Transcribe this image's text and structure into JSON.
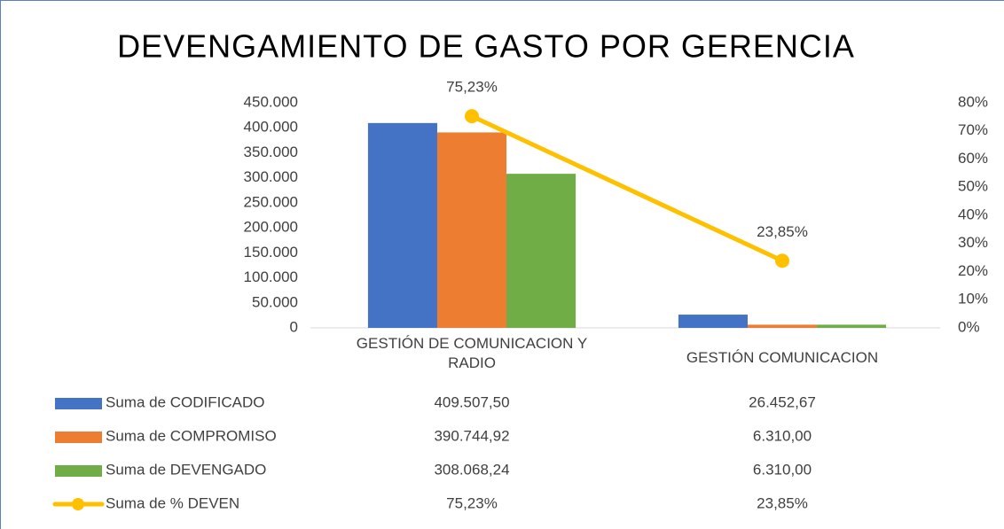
{
  "chart_data": {
    "type": "bar",
    "title": "DEVENGAMIENTO DE GASTO POR GERENCIA",
    "categories": [
      "GESTIÓN DE COMUNICACION Y RADIO",
      "GESTIÓN COMUNICACION"
    ],
    "series": [
      {
        "name": "Suma de CODIFICADO",
        "color": "#4472c4",
        "type": "bar",
        "values": [
          409507.5,
          26452.67
        ],
        "value_labels": [
          "409.507,50",
          "26.452,67"
        ]
      },
      {
        "name": "Suma de COMPROMISO",
        "color": "#ed7d31",
        "type": "bar",
        "values": [
          390744.92,
          6310
        ],
        "value_labels": [
          "390.744,92",
          "6.310,00"
        ]
      },
      {
        "name": "Suma de DEVENGADO",
        "color": "#70ad47",
        "type": "bar",
        "values": [
          308068.24,
          6310
        ],
        "value_labels": [
          "308.068,24",
          "6.310,00"
        ]
      },
      {
        "name": "Suma de % DEVEN",
        "color": "#ffc000",
        "type": "line",
        "axis": "y2",
        "values": [
          75.23,
          23.85
        ],
        "value_labels": [
          "75,23%",
          "23,85%"
        ]
      }
    ],
    "ylim": [
      0,
      450000
    ],
    "yticks": [
      0,
      {
        "value": 50000,
        "label": "50.000"
      },
      {
        "value": 100000,
        "label": "100.000"
      },
      {
        "value": 150000,
        "label": "150.000"
      },
      {
        "value": 200000,
        "label": "200.000"
      },
      {
        "value": 250000,
        "label": "250.000"
      },
      {
        "value": 300000,
        "label": "300.000"
      },
      {
        "value": 350000,
        "label": "350.000"
      },
      {
        "value": 400000,
        "label": "400.000"
      },
      {
        "value": 450000,
        "label": "450.000"
      }
    ],
    "y2lim": [
      0,
      80
    ],
    "y2ticks": [
      {
        "value": 0,
        "label": "0%"
      },
      {
        "value": 10,
        "label": "10%"
      },
      {
        "value": 20,
        "label": "20%"
      },
      {
        "value": 30,
        "label": "30%"
      },
      {
        "value": 40,
        "label": "40%"
      },
      {
        "value": 50,
        "label": "50%"
      },
      {
        "value": 60,
        "label": "60%"
      },
      {
        "value": 70,
        "label": "70%"
      },
      {
        "value": 80,
        "label": "80%"
      }
    ],
    "data_table": true
  }
}
